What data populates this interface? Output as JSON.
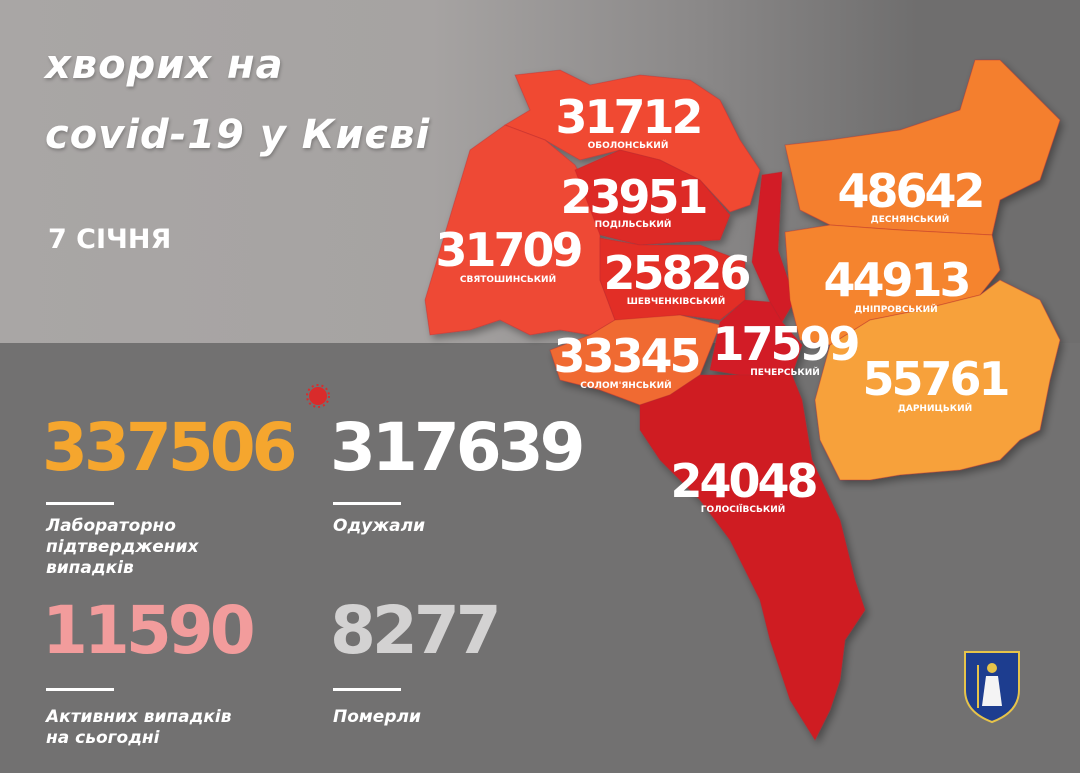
{
  "header": {
    "title_line1": "хворих на",
    "title_line2": "covid-19 у Києві",
    "date": "7 СІЧНЯ"
  },
  "districts": [
    {
      "name": "ОБОЛОНСЬКИЙ",
      "value": "31712",
      "color": "#f04a33"
    },
    {
      "name": "ПОДІЛЬСЬКИЙ",
      "value": "23951",
      "color": "#dd2a26"
    },
    {
      "name": "СВЯТОШИНСЬКИЙ",
      "value": "31709",
      "color": "#ee4a35"
    },
    {
      "name": "ШЕВЧЕНКІВСЬКИЙ",
      "value": "25826",
      "color": "#e22e28"
    },
    {
      "name": "СОЛОМ'ЯНСЬКИЙ",
      "value": "33345",
      "color": "#f06a30"
    },
    {
      "name": "ПЕЧЕРСЬКИЙ",
      "value": "17599",
      "color": "#d21e25"
    },
    {
      "name": "ГОЛОСІЇВСЬКИЙ",
      "value": "24048",
      "color": "#cf1b24"
    },
    {
      "name": "ДЕСНЯНСЬКИЙ",
      "value": "48642",
      "color": "#f47f2f"
    },
    {
      "name": "ДНІПРОВСЬКИЙ",
      "value": "44913",
      "color": "#f5842e"
    },
    {
      "name": "ДАРНИЦЬКИЙ",
      "value": "55761",
      "color": "#f7a13a"
    }
  ],
  "stats": {
    "confirmed": {
      "value": "337506",
      "label_line1": "Лабораторно",
      "label_line2": "підтверджених",
      "label_line3": "випадків",
      "color": "#f5a62e"
    },
    "recovered": {
      "value": "317639",
      "label": "Одужали",
      "color": "#ffffff"
    },
    "active": {
      "value": "11590",
      "label_line1": "Активних випадків",
      "label_line2": "на сьогодні",
      "color": "#f29c9c"
    },
    "deaths": {
      "value": "8277",
      "label": "Померли",
      "color": "#d3d2d2"
    }
  },
  "icons": {
    "virus": "virus-icon",
    "emblem": "kyiv-coat-of-arms-icon"
  }
}
